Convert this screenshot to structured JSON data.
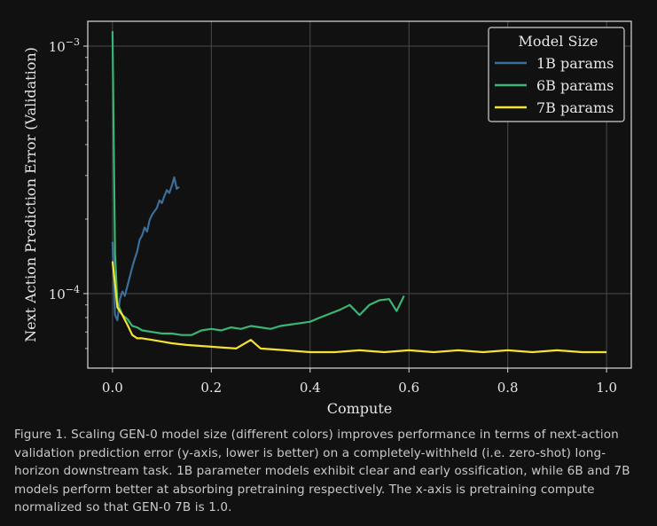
{
  "chart_data": {
    "type": "line",
    "title": "",
    "xlabel": "Compute",
    "ylabel": "Next Action Prediction Error (Validation)",
    "xlim": [
      -0.05,
      1.05
    ],
    "ylim": [
      5e-05,
      0.00126
    ],
    "yscale": "log",
    "grid": true,
    "x_ticks": [
      0.0,
      0.2,
      0.4,
      0.6,
      0.8,
      1.0
    ],
    "x_tick_labels": [
      "0.0",
      "0.2",
      "0.4",
      "0.6",
      "0.8",
      "1.0"
    ],
    "y_ticks": [
      {
        "value": 0.001,
        "base": "10",
        "exp": "−3"
      },
      {
        "value": 0.0001,
        "base": "10",
        "exp": "−4"
      }
    ],
    "legend": {
      "title": "Model Size",
      "position": "top-right"
    },
    "series": [
      {
        "name": "1B params",
        "color": "#3b6e9a",
        "x": [
          0.0,
          0.005,
          0.01,
          0.015,
          0.02,
          0.025,
          0.03,
          0.035,
          0.04,
          0.045,
          0.05,
          0.055,
          0.06,
          0.065,
          0.07,
          0.075,
          0.08,
          0.085,
          0.09,
          0.095,
          0.1,
          0.105,
          0.11,
          0.115,
          0.12,
          0.125,
          0.13,
          0.135
        ],
        "values": [
          0.000162,
          8.2e-05,
          7.8e-05,
          9.5e-05,
          0.000102,
          9.8e-05,
          0.000107,
          0.000117,
          0.000128,
          0.000138,
          0.000148,
          0.000165,
          0.000172,
          0.000185,
          0.000178,
          0.000198,
          0.000208,
          0.000215,
          0.000222,
          0.000238,
          0.000232,
          0.000248,
          0.000262,
          0.000255,
          0.000272,
          0.000295,
          0.000265,
          0.00027
        ]
      },
      {
        "name": "6B params",
        "color": "#3ab574",
        "x": [
          0.0,
          0.005,
          0.01,
          0.02,
          0.03,
          0.04,
          0.05,
          0.06,
          0.08,
          0.1,
          0.12,
          0.14,
          0.16,
          0.18,
          0.2,
          0.22,
          0.24,
          0.26,
          0.28,
          0.3,
          0.32,
          0.34,
          0.36,
          0.38,
          0.4,
          0.42,
          0.44,
          0.46,
          0.48,
          0.5,
          0.52,
          0.54,
          0.56,
          0.575,
          0.59
        ],
        "values": [
          0.00115,
          0.000145,
          9.2e-05,
          8.2e-05,
          7.9e-05,
          7.4e-05,
          7.3e-05,
          7.1e-05,
          7e-05,
          6.9e-05,
          6.9e-05,
          6.8e-05,
          6.8e-05,
          7.1e-05,
          7.2e-05,
          7.1e-05,
          7.3e-05,
          7.2e-05,
          7.4e-05,
          7.3e-05,
          7.2e-05,
          7.4e-05,
          7.5e-05,
          7.6e-05,
          7.7e-05,
          8e-05,
          8.3e-05,
          8.6e-05,
          9e-05,
          8.2e-05,
          9e-05,
          9.4e-05,
          9.5e-05,
          8.5e-05,
          9.8e-05
        ]
      },
      {
        "name": "7B params",
        "color": "#f5e232",
        "x": [
          0.0,
          0.005,
          0.01,
          0.02,
          0.03,
          0.04,
          0.05,
          0.06,
          0.08,
          0.1,
          0.12,
          0.15,
          0.2,
          0.25,
          0.28,
          0.3,
          0.35,
          0.4,
          0.45,
          0.5,
          0.55,
          0.6,
          0.65,
          0.7,
          0.75,
          0.8,
          0.85,
          0.9,
          0.95,
          1.0
        ],
        "values": [
          0.000135,
          0.00011,
          8.8e-05,
          8.2e-05,
          7.5e-05,
          6.8e-05,
          6.6e-05,
          6.6e-05,
          6.5e-05,
          6.4e-05,
          6.3e-05,
          6.2e-05,
          6.1e-05,
          6e-05,
          6.5e-05,
          6e-05,
          5.9e-05,
          5.8e-05,
          5.8e-05,
          5.9e-05,
          5.8e-05,
          5.9e-05,
          5.8e-05,
          5.9e-05,
          5.8e-05,
          5.9e-05,
          5.8e-05,
          5.9e-05,
          5.8e-05,
          5.8e-05
        ]
      }
    ]
  },
  "caption": "Figure 1. Scaling GEN-0 model size (different colors) improves performance in terms of next-action validation prediction error (y-axis, lower is better) on a completely-withheld (i.e. zero-shot) long-horizon downstream task. 1B parameter models exhibit clear and early ossification, while 6B and 7B models perform better at absorbing pretraining respectively. The x-axis is pretraining compute normalized so that GEN-0 7B is 1.0."
}
